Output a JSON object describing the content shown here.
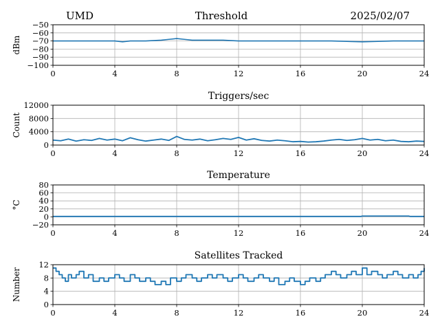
{
  "header": {
    "left": "UMD",
    "center": "Threshold",
    "right": "2025/02/07"
  },
  "colors": {
    "line": "#1f77b4",
    "grid": "#b0b0b0",
    "axes": "#000000"
  },
  "chart_data": [
    {
      "type": "line",
      "title": "Threshold",
      "ylabel": "dBm",
      "xlim": [
        0,
        24
      ],
      "ylim": [
        -100,
        -50
      ],
      "xticks": [
        0,
        4,
        8,
        12,
        16,
        20,
        24
      ],
      "yticks": [
        -100,
        -90,
        -80,
        -70,
        -60,
        -50
      ],
      "ytick_labels": [
        "−100",
        "−90",
        "−80",
        "−70",
        "−60",
        "−50"
      ],
      "grid": true,
      "series": [
        {
          "x": [
            0,
            1,
            2,
            3,
            4,
            4.5,
            5,
            6,
            7,
            7.5,
            8,
            8.5,
            9,
            10,
            11,
            12,
            13,
            14,
            15,
            16,
            17,
            18,
            19,
            20,
            21,
            22,
            23,
            24
          ],
          "values": [
            -70,
            -70,
            -70,
            -70,
            -70,
            -71,
            -70,
            -70,
            -69,
            -68,
            -67,
            -68,
            -69,
            -69,
            -69,
            -70,
            -70,
            -70,
            -70,
            -70,
            -70,
            -70,
            -70.5,
            -71,
            -70.5,
            -70,
            -70,
            -70
          ]
        }
      ]
    },
    {
      "type": "line",
      "title": "Triggers/sec",
      "ylabel": "Count",
      "xlim": [
        0,
        24
      ],
      "ylim": [
        0,
        12000
      ],
      "xticks": [
        0,
        4,
        8,
        12,
        16,
        20,
        24
      ],
      "yticks": [
        0,
        4000,
        8000,
        12000
      ],
      "ytick_labels": [
        "0",
        "4000",
        "8000",
        "12000"
      ],
      "grid": true,
      "series": [
        {
          "x": [
            0,
            0.5,
            1,
            1.5,
            2,
            2.5,
            3,
            3.5,
            4,
            4.5,
            5,
            5.5,
            6,
            6.5,
            7,
            7.5,
            8,
            8.5,
            9,
            9.5,
            10,
            10.5,
            11,
            11.5,
            12,
            12.5,
            13,
            13.5,
            14,
            14.5,
            15,
            15.5,
            16,
            16.5,
            17,
            17.5,
            18,
            18.5,
            19,
            19.5,
            20,
            20.5,
            21,
            21.5,
            22,
            22.5,
            23,
            23.5,
            24
          ],
          "values": [
            1500,
            1300,
            1800,
            1200,
            1600,
            1400,
            2000,
            1500,
            1800,
            1300,
            2200,
            1600,
            1200,
            1500,
            1800,
            1400,
            2600,
            1700,
            1500,
            1800,
            1300,
            1600,
            2000,
            1700,
            2300,
            1500,
            1900,
            1400,
            1200,
            1500,
            1300,
            1000,
            1100,
            900,
            1000,
            1200,
            1500,
            1700,
            1400,
            1600,
            2000,
            1500,
            1700,
            1300,
            1500,
            1100,
            1000,
            1200,
            1100
          ]
        }
      ]
    },
    {
      "type": "line",
      "title": "Temperature",
      "ylabel": "°C",
      "xlim": [
        0,
        24
      ],
      "ylim": [
        -20,
        80
      ],
      "xticks": [
        0,
        4,
        8,
        12,
        16,
        20,
        24
      ],
      "yticks": [
        -20,
        0,
        20,
        40,
        60,
        80
      ],
      "ytick_labels": [
        "−20",
        "0",
        "20",
        "40",
        "60",
        "80"
      ],
      "grid": true,
      "series": [
        {
          "x": [
            0,
            4,
            8,
            12,
            16,
            19.9,
            20,
            23,
            23.1,
            24
          ],
          "values": [
            1,
            1,
            1,
            1,
            1,
            1,
            2,
            2,
            1,
            1
          ]
        }
      ]
    },
    {
      "type": "line",
      "title": "Satellites Tracked",
      "ylabel": "Number",
      "xlim": [
        0,
        24
      ],
      "ylim": [
        0,
        12
      ],
      "xticks": [
        0,
        4,
        8,
        12,
        16,
        20,
        24
      ],
      "yticks": [
        0,
        4,
        8,
        12
      ],
      "ytick_labels": [
        "0",
        "4",
        "8",
        "12"
      ],
      "grid": true,
      "series": [
        {
          "x": [
            0,
            0.2,
            0.4,
            0.6,
            0.8,
            1.0,
            1.2,
            1.5,
            1.7,
            2.0,
            2.3,
            2.6,
            3.0,
            3.3,
            3.6,
            4.0,
            4.3,
            4.6,
            5.0,
            5.3,
            5.6,
            6.0,
            6.3,
            6.6,
            7.0,
            7.3,
            7.6,
            8.0,
            8.3,
            8.6,
            9.0,
            9.3,
            9.6,
            10.0,
            10.3,
            10.6,
            11.0,
            11.3,
            11.6,
            12.0,
            12.3,
            12.6,
            13.0,
            13.3,
            13.6,
            14.0,
            14.3,
            14.6,
            15.0,
            15.3,
            15.6,
            16.0,
            16.3,
            16.6,
            17.0,
            17.3,
            17.6,
            18.0,
            18.3,
            18.6,
            19.0,
            19.3,
            19.6,
            20.0,
            20.3,
            20.6,
            21.0,
            21.3,
            21.6,
            22.0,
            22.3,
            22.6,
            23.0,
            23.3,
            23.6,
            23.8,
            24.0
          ],
          "values": [
            11,
            10,
            9,
            8,
            7,
            9,
            8,
            9,
            10,
            8,
            9,
            7,
            8,
            7,
            8,
            9,
            8,
            7,
            9,
            8,
            7,
            8,
            7,
            6,
            7,
            6,
            8,
            7,
            8,
            9,
            8,
            7,
            8,
            9,
            8,
            9,
            8,
            7,
            8,
            9,
            8,
            7,
            8,
            9,
            8,
            7,
            8,
            6,
            7,
            8,
            7,
            6,
            7,
            8,
            7,
            8,
            9,
            10,
            9,
            8,
            9,
            10,
            9,
            11,
            9,
            10,
            9,
            8,
            9,
            10,
            9,
            8,
            9,
            8,
            9,
            10,
            11
          ]
        }
      ]
    }
  ]
}
